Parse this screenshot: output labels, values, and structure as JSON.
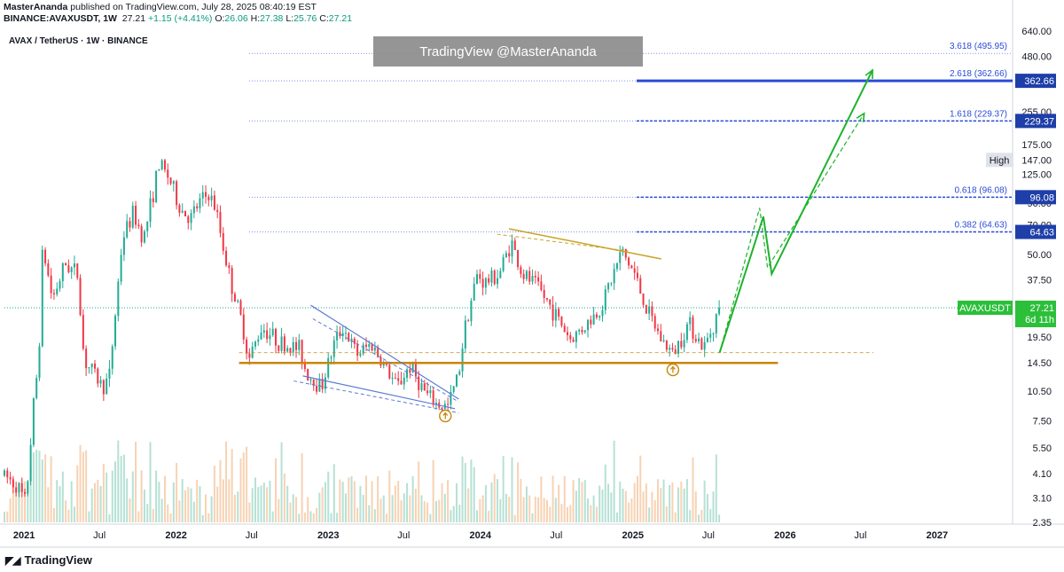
{
  "header": {
    "author": "MasterAnanda",
    "published_text": "published on TradingView.com, July 28, 2025 08:40:19 EST",
    "symbol_line": "BINANCE:AVAXUSDT, 1W",
    "last": "27.21",
    "change": "+1.15 (+4.41%)",
    "open_label": "O:",
    "open": "26.06",
    "high_label": "H:",
    "high": "27.38",
    "low_label": "L:",
    "low": "25.76",
    "close_label": "C:",
    "close": "27.21"
  },
  "legend": {
    "title": "AVAX / TetherUS · 1W · BINANCE"
  },
  "watermark": "TradingView @MasterAnanda",
  "brand": "TradingView",
  "colors": {
    "up": "#22ab94",
    "down": "#f23645",
    "fib": "#2a4bd7",
    "support": "#c8860a",
    "projection": "#1db32b",
    "wedge": "#5b7bd5"
  },
  "chart_data": {
    "type": "candlestick",
    "title": "AVAX / TetherUS · 1W · BINANCE",
    "y_scale": "log",
    "ylim": [
      2.35,
      640
    ],
    "y_ticks": [
      640,
      480,
      350,
      255,
      175,
      125,
      90,
      70,
      50,
      37.5,
      27.21,
      19.5,
      14.5,
      10.5,
      7.5,
      5.5,
      4.1,
      3.1,
      2.35
    ],
    "y_tick_labels": [
      "640.00",
      "480.00",
      "350.00",
      "255.00",
      "175.00",
      "125.00",
      "90.00",
      "70.00",
      "50.00",
      "37.50",
      "",
      "19.50",
      "14.50",
      "10.50",
      "7.50",
      "5.50",
      "4.10",
      "3.10",
      "2.35"
    ],
    "x_ticks": [
      "2021",
      "Jul",
      "2022",
      "Jul",
      "2023",
      "Jul",
      "2024",
      "Jul",
      "2025",
      "Jul",
      "2026",
      "Jul",
      "2027"
    ],
    "xlim": [
      "2020-11-15",
      "2027-07-01"
    ],
    "price_path": [
      [
        "2020-11-15",
        4.0
      ],
      [
        "2020-12-15",
        3.6
      ],
      [
        "2021-01-05",
        2.9
      ],
      [
        "2021-01-25",
        9.5
      ],
      [
        "2021-02-05",
        15
      ],
      [
        "2021-02-15",
        55
      ],
      [
        "2021-03-10",
        30
      ],
      [
        "2021-04-10",
        45
      ],
      [
        "2021-05-10",
        40
      ],
      [
        "2021-05-25",
        15
      ],
      [
        "2021-07-10",
        11
      ],
      [
        "2021-07-25",
        12.5
      ],
      [
        "2021-08-25",
        60
      ],
      [
        "2021-09-20",
        80
      ],
      [
        "2021-10-15",
        60
      ],
      [
        "2021-11-21",
        140
      ],
      [
        "2021-12-15",
        120
      ],
      [
        "2022-01-10",
        85
      ],
      [
        "2022-02-05",
        75
      ],
      [
        "2022-02-25",
        90
      ],
      [
        "2022-03-20",
        100
      ],
      [
        "2022-04-05",
        85
      ],
      [
        "2022-05-10",
        38
      ],
      [
        "2022-06-10",
        22
      ],
      [
        "2022-06-25",
        15
      ],
      [
        "2022-07-25",
        22
      ],
      [
        "2022-09-10",
        18
      ],
      [
        "2022-10-25",
        17
      ],
      [
        "2022-11-09",
        13
      ],
      [
        "2022-12-15",
        11
      ],
      [
        "2023-01-15",
        18
      ],
      [
        "2023-02-05",
        22
      ],
      [
        "2023-03-10",
        16
      ],
      [
        "2023-04-15",
        18
      ],
      [
        "2023-06-15",
        11
      ],
      [
        "2023-07-15",
        14
      ],
      [
        "2023-08-25",
        10
      ],
      [
        "2023-09-20",
        9
      ],
      [
        "2023-10-15",
        8.8
      ],
      [
        "2023-11-10",
        13
      ],
      [
        "2023-11-25",
        22
      ],
      [
        "2023-12-25",
        40
      ],
      [
        "2024-01-10",
        36
      ],
      [
        "2024-02-15",
        40
      ],
      [
        "2024-03-15",
        58
      ],
      [
        "2024-04-10",
        40
      ],
      [
        "2024-05-15",
        35
      ],
      [
        "2024-06-15",
        28
      ],
      [
        "2024-08-05",
        19
      ],
      [
        "2024-09-15",
        23
      ],
      [
        "2024-10-15",
        27
      ],
      [
        "2024-11-15",
        40
      ],
      [
        "2024-12-05",
        52
      ],
      [
        "2025-01-05",
        40
      ],
      [
        "2025-02-05",
        26
      ],
      [
        "2025-03-10",
        19
      ],
      [
        "2025-04-07",
        16
      ],
      [
        "2025-05-15",
        23
      ],
      [
        "2025-06-20",
        17
      ],
      [
        "2025-07-28",
        27.21
      ]
    ],
    "fib_levels": [
      {
        "label": "0.382 (64.63)",
        "price": 64.63,
        "tag": "64.63"
      },
      {
        "label": "0.618 (96.08)",
        "price": 96.08,
        "tag": "96.08"
      },
      {
        "label": "1.618 (229.37)",
        "price": 229.37,
        "tag": "229.37"
      },
      {
        "label": "2.618 (362.66)",
        "price": 362.66,
        "tag": "362.66"
      },
      {
        "label": "3.618 (495.95)",
        "price": 495.95,
        "tag": ""
      }
    ],
    "high_label": {
      "text": "High",
      "price": 147.0,
      "value": "147.00"
    },
    "current_price": {
      "symbol": "AVAXUSDT",
      "price": 27.21,
      "value": "27.21",
      "countdown": "6d 11h"
    },
    "support": {
      "price": 14.5,
      "from": "2022-06-01",
      "to": "2025-12-15"
    },
    "support_dashed": {
      "price": 16.3,
      "from": "2022-06-01",
      "to": "2026-08-01"
    },
    "resistance": [
      [
        "2024-03-10",
        67
      ],
      [
        "2025-03-10",
        47.5
      ]
    ],
    "resistance_dashed": [
      [
        "2024-02-10",
        63
      ],
      [
        "2024-12-20",
        52
      ]
    ],
    "wedge_upper": [
      [
        "2022-11-20",
        28
      ],
      [
        "2023-11-10",
        9.6
      ]
    ],
    "wedge_upper_dashed": [
      [
        "2022-11-25",
        24
      ],
      [
        "2023-11-10",
        9.3
      ]
    ],
    "wedge_lower": [
      [
        "2022-11-01",
        12.5
      ],
      [
        "2023-11-01",
        8.6
      ]
    ],
    "wedge_lower_dashed": [
      [
        "2022-10-10",
        11.8
      ],
      [
        "2023-11-10",
        8.2
      ]
    ],
    "projection_solid": [
      [
        "2025-07-28",
        16.3
      ],
      [
        "2025-11-10",
        77
      ],
      [
        "2025-11-30",
        40
      ],
      [
        "2026-07-30",
        410
      ]
    ],
    "projection_dashed": [
      [
        "2025-07-28",
        16.3
      ],
      [
        "2025-11-01",
        85
      ],
      [
        "2025-11-20",
        43
      ],
      [
        "2026-07-10",
        250
      ]
    ],
    "bottom_markers": [
      "2023-10-09",
      "2025-04-07"
    ]
  }
}
